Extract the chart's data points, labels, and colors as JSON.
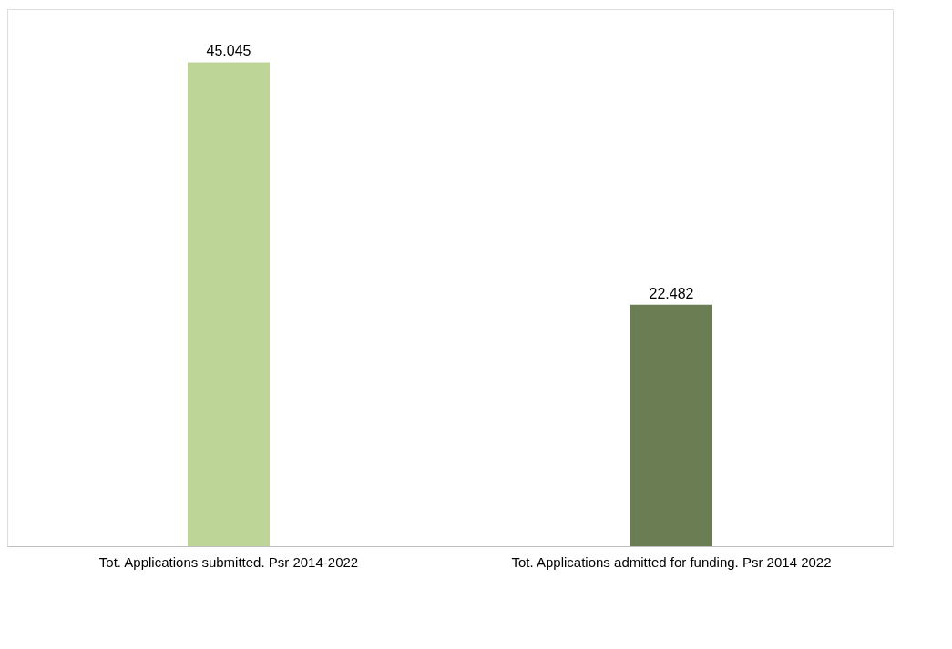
{
  "chart_data": {
    "type": "bar",
    "categories": [
      "Tot. Applications submitted. Psr 2014-2022",
      "Tot. Applications admitted for funding. Psr 2014 2022"
    ],
    "values": [
      45045,
      22482
    ],
    "value_labels": [
      "45.045",
      "22.482"
    ],
    "colors": [
      "#bdd597",
      "#6b7d52"
    ],
    "grid": false,
    "legend": false
  }
}
